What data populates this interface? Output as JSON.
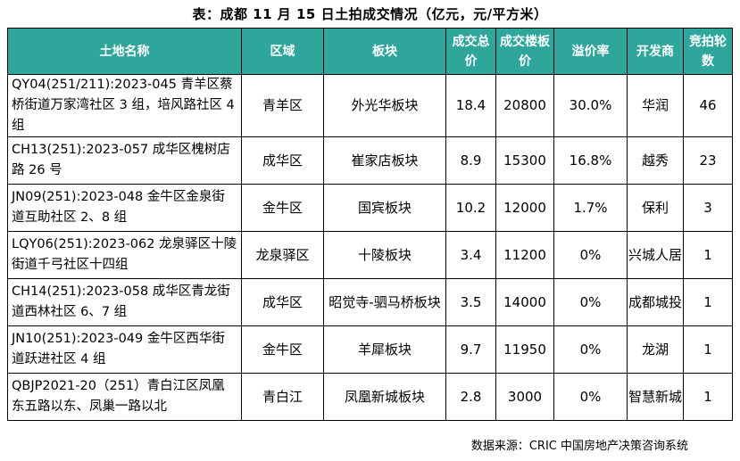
{
  "title": "表：成都 11 月 15 日土拍成交情况（亿元，元/平方米）",
  "header": {
    "name": "土地名称",
    "district": "区域",
    "block": "板块",
    "total_price": "成交总价",
    "floor_price": "成交楼板价",
    "premium": "溢价率",
    "developer": "开发商",
    "rounds": "竞拍轮数"
  },
  "rows": [
    {
      "name": "QY04(251/211):2023-045 青羊区蔡桥街道万家湾社区 3 组，培风路社区 4 组",
      "district": "青羊区",
      "block": "外光华板块",
      "total_price": "18.4",
      "floor_price": "20800",
      "premium": "30.0%",
      "developer": "华润",
      "rounds": "46"
    },
    {
      "name": "CH13(251):2023-057 成华区槐树店路 26 号",
      "district": "成华区",
      "block": "崔家店板块",
      "total_price": "8.9",
      "floor_price": "15300",
      "premium": "16.8%",
      "developer": "越秀",
      "rounds": "23"
    },
    {
      "name": "JN09(251):2023-048 金牛区金泉街道互助社区 2、8 组",
      "district": "金牛区",
      "block": "国宾板块",
      "total_price": "10.2",
      "floor_price": "12000",
      "premium": "1.7%",
      "developer": "保利",
      "rounds": "3"
    },
    {
      "name": "LQY06(251):2023-062 龙泉驿区十陵街道千弓社区十四组",
      "district": "龙泉驿区",
      "block": "十陵板块",
      "total_price": "3.4",
      "floor_price": "11200",
      "premium": "0%",
      "developer": "兴城人居",
      "rounds": "1"
    },
    {
      "name": "CH14(251):2023-058 成华区青龙街道西林社区 6、7 组",
      "district": "成华区",
      "block": "昭觉寺-驷马桥板块",
      "total_price": "3.5",
      "floor_price": "14000",
      "premium": "0%",
      "developer": "成都城投",
      "rounds": "1"
    },
    {
      "name": "JN10(251):2023-049 金牛区西华街道跃进社区 4 组",
      "district": "金牛区",
      "block": "羊犀板块",
      "total_price": "9.7",
      "floor_price": "11950",
      "premium": "0%",
      "developer": "龙湖",
      "rounds": "1"
    },
    {
      "name": "QBJP2021-20（251）青白江区凤凰东五路以东、凤巢一路以北",
      "district": "青白江",
      "block": "凤凰新城板块",
      "total_price": "2.8",
      "floor_price": "3000",
      "premium": "0%",
      "developer": "智慧新城",
      "rounds": "1"
    }
  ],
  "source": "数据来源：CRIC 中国房地产决策咨询系统",
  "colors": {
    "header_bg": "#2ea69b",
    "header_text": "#ffffff",
    "border": "#000000"
  }
}
